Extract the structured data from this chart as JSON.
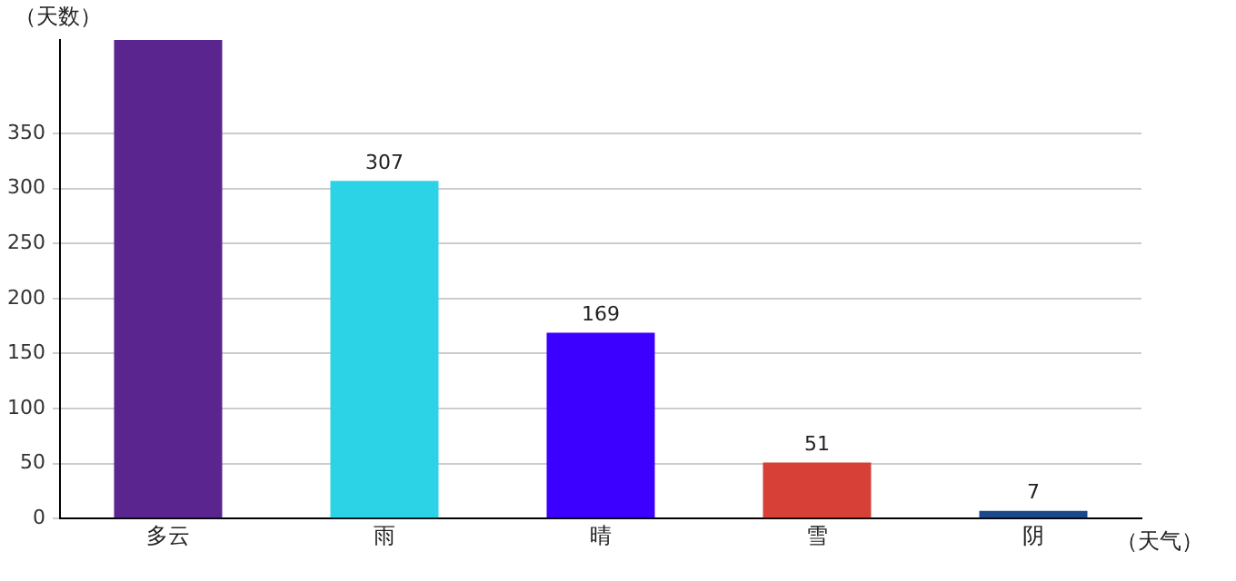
{
  "chart_data": {
    "type": "bar",
    "ylabel": "（天数）",
    "xlabel": "（天气）",
    "categories": [
      "多云",
      "雨",
      "晴",
      "雪",
      "阴"
    ],
    "values": [
      435,
      307,
      169,
      51,
      7
    ],
    "colors": [
      "#5b2590",
      "#2cd3e6",
      "#3b00ff",
      "#d64036",
      "#1a4a8a"
    ],
    "value_labels": [
      null,
      "307",
      "169",
      "51",
      "7"
    ],
    "ylim": [
      0,
      435
    ],
    "yticks": [
      0,
      50,
      100,
      150,
      200,
      250,
      300,
      350
    ],
    "grid": "y",
    "legend": false
  }
}
